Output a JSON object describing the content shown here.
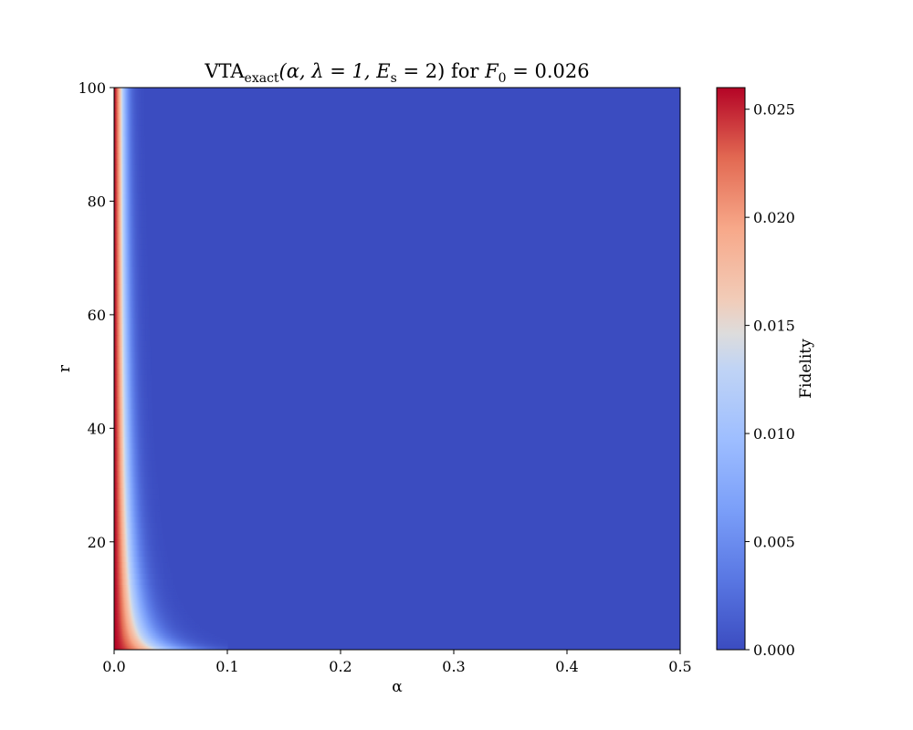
{
  "chart_data": {
    "type": "heatmap",
    "title": {
      "prefix": "VTA",
      "subscript": "exact",
      "args": "(α, λ = 1, E",
      "args_sub": "s",
      "args_end": " = 2) for ",
      "f_symbol": "F",
      "f_sub": "0",
      "f_value": " = 0.026"
    },
    "xlabel": "α",
    "ylabel": "r",
    "xlim": [
      0.0,
      0.5
    ],
    "ylim": [
      1,
      100
    ],
    "x_ticks": [
      "0.0",
      "0.1",
      "0.2",
      "0.3",
      "0.4",
      "0.5"
    ],
    "y_ticks": [
      "20",
      "40",
      "60",
      "80",
      "100"
    ],
    "colorbar": {
      "label": "Fidelity",
      "colormap": "coolwarm",
      "range": [
        0.0,
        0.026
      ],
      "ticks": [
        "0.000",
        "0.005",
        "0.010",
        "0.015",
        "0.020",
        "0.025"
      ]
    },
    "F0": 0.026,
    "colors": {
      "low": "#3b4cc0",
      "mid": "#dddddd",
      "high": "#b40426"
    }
  }
}
